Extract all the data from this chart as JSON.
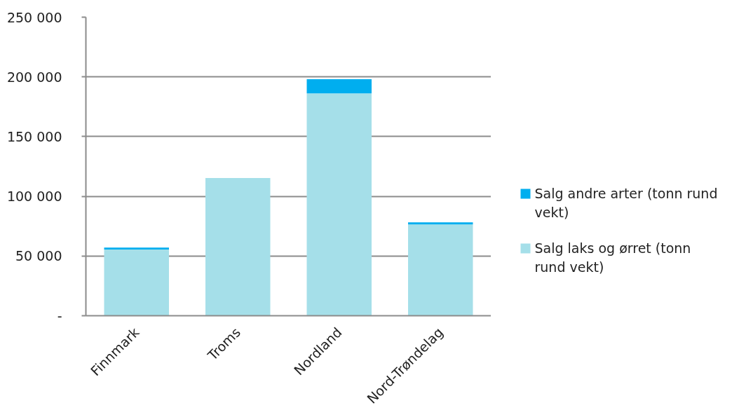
{
  "chart_data": {
    "type": "bar",
    "stacked": true,
    "categories": [
      "Finnmark",
      "Troms",
      "Nordland",
      "Nord-Trøndelag"
    ],
    "series": [
      {
        "name": "Salg laks og ørret (tonn rund vekt)",
        "color": "#a5dfe9",
        "values": [
          55500,
          115300,
          186200,
          76400
        ]
      },
      {
        "name": "Salg andre arter (tonn rund vekt)",
        "color": "#00aeef",
        "values": [
          1500,
          null,
          11800,
          1800
        ]
      }
    ],
    "ylim": [
      0,
      250000
    ],
    "yticks": [
      {
        "value": 0,
        "label": "-"
      },
      {
        "value": 50000,
        "label": "50 000"
      },
      {
        "value": 100000,
        "label": "100 000"
      },
      {
        "value": 150000,
        "label": "150 000"
      },
      {
        "value": 200000,
        "label": "200 000"
      },
      {
        "value": 250000,
        "label": "250 000"
      }
    ],
    "grid": "y",
    "legend": "right"
  }
}
